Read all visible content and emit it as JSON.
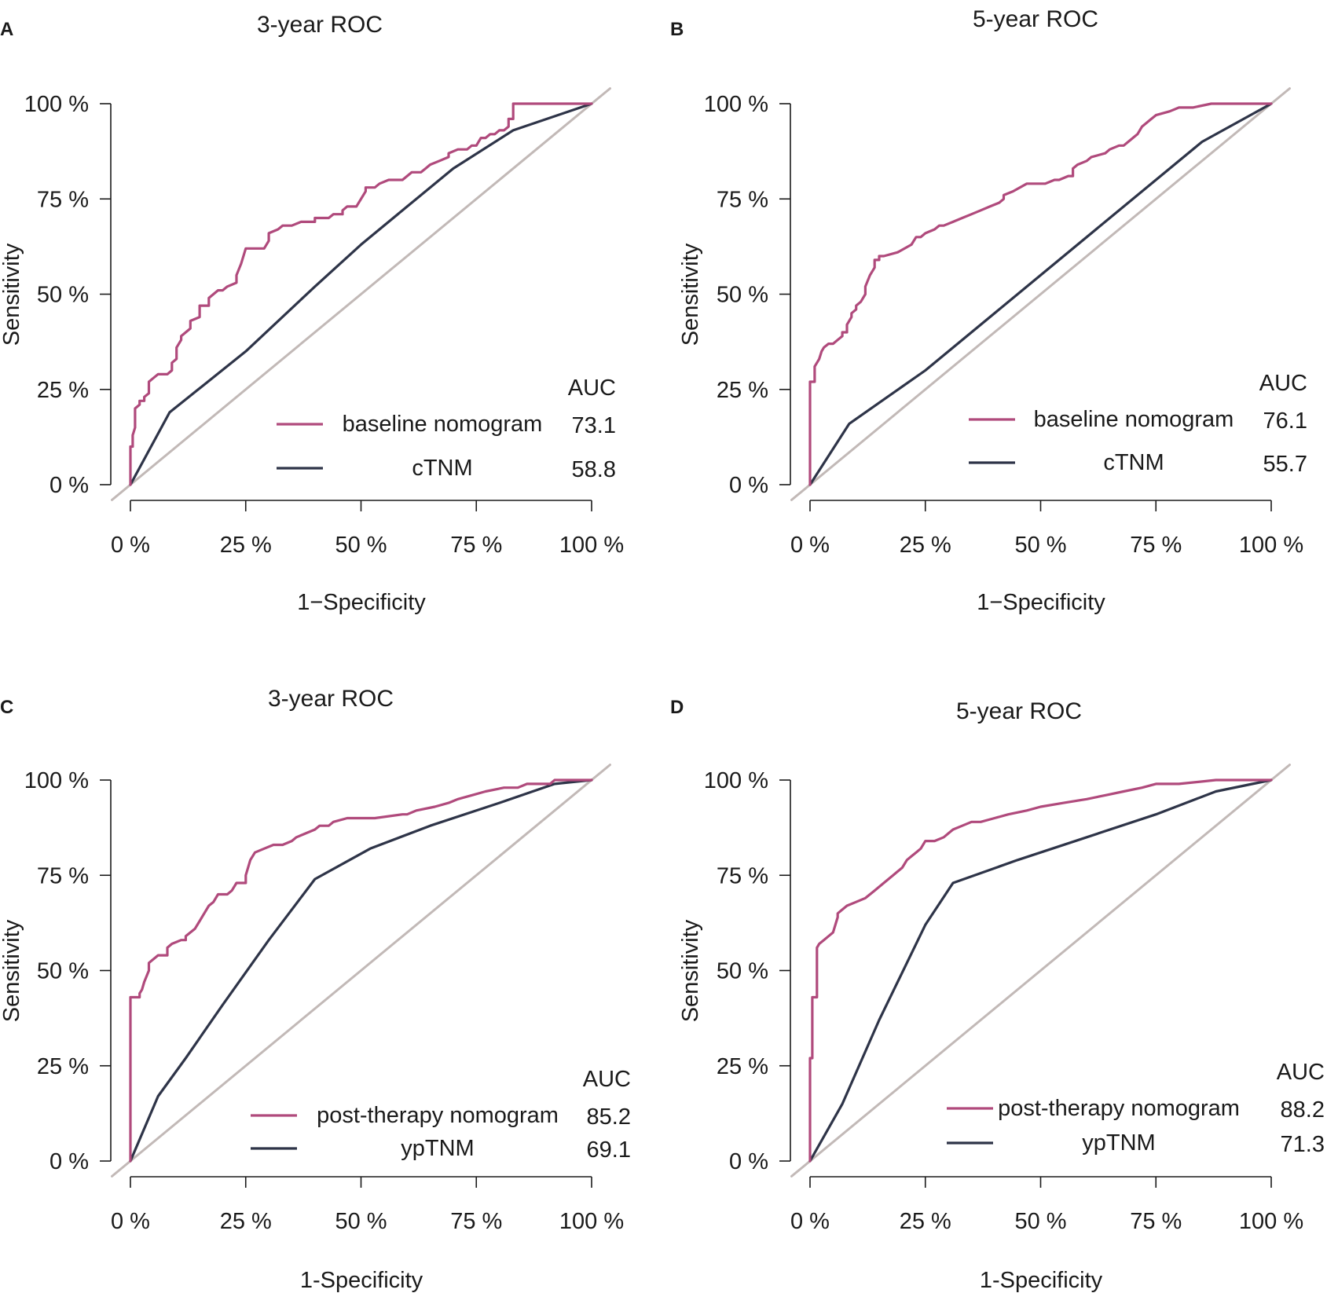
{
  "colors": {
    "nomogram": "#b04a7c",
    "tnm": "#2e3448",
    "diagonal": "#c2b9b7"
  },
  "chart_data": [
    {
      "type": "line",
      "panel_label": "A",
      "title": "3-year ROC",
      "xlabel": "1−Specificity",
      "ylabel": "Sensitivity",
      "xlim": [
        0,
        100
      ],
      "ylim": [
        0,
        100
      ],
      "xticks": [
        "0 %",
        "25 %",
        "50 %",
        "75 %",
        "100 %"
      ],
      "yticks": [
        "0 %",
        "25 %",
        "50 %",
        "75 %",
        "100 %"
      ],
      "legend_header": "AUC",
      "series": [
        {
          "name": "baseline nomogram",
          "auc": "73.1",
          "role": "nomogram",
          "x": [
            0,
            0,
            0.5,
            0.5,
            1,
            1,
            2,
            2,
            3,
            3,
            4,
            4,
            5,
            5,
            6,
            8,
            9,
            9,
            10,
            10,
            11,
            11,
            13,
            13,
            15,
            15,
            17,
            17,
            19,
            20,
            21,
            21,
            23,
            23,
            24,
            25,
            27,
            29,
            30,
            30,
            32,
            33,
            35,
            37,
            40,
            40,
            43,
            44,
            46,
            46,
            47,
            49,
            51,
            51,
            53,
            54,
            56,
            57,
            59,
            60,
            61,
            63,
            64,
            65,
            67,
            69,
            69,
            71,
            73,
            74,
            75,
            76,
            77,
            78,
            79,
            80,
            81,
            82,
            82,
            83,
            83,
            87,
            100
          ],
          "y": [
            0,
            10,
            10,
            13,
            15,
            20,
            21,
            22,
            22,
            23,
            24,
            27,
            28,
            28,
            29,
            29,
            30,
            32,
            33,
            36,
            38,
            39,
            41,
            43,
            44,
            47,
            47,
            49,
            51,
            51,
            52,
            52,
            53,
            55,
            58,
            62,
            62,
            62,
            64,
            66,
            67,
            68,
            68,
            69,
            69,
            70,
            70,
            71,
            71,
            72,
            73,
            73,
            77,
            78,
            78,
            79,
            80,
            80,
            80,
            81,
            82,
            82,
            83,
            84,
            85,
            86,
            87,
            88,
            88,
            89,
            89,
            91,
            91,
            92,
            92,
            93,
            93,
            94,
            96,
            96,
            100,
            100,
            100
          ]
        },
        {
          "name": "cTNM",
          "auc": "58.8",
          "role": "tnm",
          "x": [
            0,
            8.5,
            25,
            40,
            50,
            60,
            70,
            83,
            100
          ],
          "y": [
            0,
            19,
            35,
            52,
            63,
            73,
            83,
            93,
            100
          ]
        }
      ]
    },
    {
      "type": "line",
      "panel_label": "B",
      "title": "5-year ROC",
      "xlabel": "1−Specificity",
      "ylabel": "Sensitivity",
      "xlim": [
        0,
        100
      ],
      "ylim": [
        0,
        100
      ],
      "xticks": [
        "0 %",
        "25 %",
        "50 %",
        "75 %",
        "100 %"
      ],
      "yticks": [
        "0 %",
        "25 %",
        "50 %",
        "75 %",
        "100 %"
      ],
      "legend_header": "AUC",
      "series": [
        {
          "name": "baseline nomogram",
          "auc": "76.1",
          "role": "nomogram",
          "x": [
            0,
            0,
            1,
            1,
            1.5,
            2,
            2.5,
            3,
            4,
            5,
            6,
            7,
            7,
            8,
            8,
            9,
            9,
            10,
            10,
            11,
            12,
            12,
            13,
            14,
            14,
            15,
            15,
            16,
            16,
            19,
            22,
            23,
            24,
            25,
            27,
            28,
            29,
            31,
            33,
            35,
            37,
            39,
            41,
            42,
            42,
            44,
            47,
            51,
            53,
            54,
            56,
            57,
            57,
            58,
            60,
            61,
            64,
            65,
            67,
            68,
            69,
            70,
            71,
            72,
            73,
            74,
            75,
            75,
            78,
            80,
            83,
            87,
            89,
            100
          ],
          "y": [
            0,
            27,
            27,
            31,
            32,
            33,
            35,
            36,
            37,
            37,
            38,
            39,
            40,
            40,
            42,
            44,
            45,
            46,
            47,
            48,
            50,
            52,
            55,
            57,
            59,
            59,
            60,
            60,
            60,
            61,
            63,
            65,
            65,
            66,
            67,
            68,
            68,
            69,
            70,
            71,
            72,
            73,
            74,
            75,
            76,
            77,
            79,
            79,
            80,
            80,
            81,
            81,
            83,
            84,
            85,
            86,
            87,
            88,
            89,
            89,
            90,
            91,
            92,
            94,
            95,
            96,
            97,
            97,
            98,
            99,
            99,
            100,
            100,
            100
          ]
        },
        {
          "name": "cTNM",
          "auc": "55.7",
          "role": "tnm",
          "x": [
            0,
            8.5,
            25,
            45,
            65,
            85,
            100
          ],
          "y": [
            0,
            16,
            30,
            50,
            70,
            90,
            100
          ]
        }
      ]
    },
    {
      "type": "line",
      "panel_label": "C",
      "title": "3-year ROC",
      "xlabel": "1-Specificity",
      "ylabel": "Sensitivity",
      "xlim": [
        0,
        100
      ],
      "ylim": [
        0,
        100
      ],
      "xticks": [
        "0 %",
        "25 %",
        "50 %",
        "75 %",
        "100 %"
      ],
      "yticks": [
        "0 %",
        "25 %",
        "50 %",
        "75 %",
        "100 %"
      ],
      "legend_header": "AUC",
      "series": [
        {
          "name": "post-therapy nomogram",
          "auc": "85.2",
          "role": "nomogram",
          "x": [
            0,
            0,
            0,
            2,
            2,
            2.5,
            3,
            4,
            4,
            5,
            6,
            8,
            8,
            9,
            11,
            12,
            12,
            13,
            14,
            15,
            16,
            17,
            18,
            19,
            21,
            22,
            23,
            25,
            25,
            26,
            27,
            29,
            31,
            33,
            35,
            36,
            38,
            40,
            41,
            43,
            44,
            47,
            50,
            53,
            59,
            60,
            62,
            66,
            69,
            71,
            74,
            77,
            81,
            84,
            86,
            91,
            92,
            100
          ],
          "y": [
            0,
            27,
            43,
            43,
            44,
            45,
            47,
            50,
            52,
            53,
            54,
            54,
            56,
            57,
            58,
            58,
            59,
            60,
            61,
            63,
            65,
            67,
            68,
            70,
            70,
            71,
            73,
            73,
            75,
            79,
            81,
            82,
            83,
            83,
            84,
            85,
            86,
            87,
            88,
            88,
            89,
            90,
            90,
            90,
            91,
            91,
            92,
            93,
            94,
            95,
            96,
            97,
            98,
            98,
            99,
            99,
            100,
            100
          ]
        },
        {
          "name": "ypTNM",
          "auc": "69.1",
          "role": "tnm",
          "x": [
            0,
            6,
            12,
            20,
            30,
            40,
            52,
            65,
            80,
            92,
            100
          ],
          "y": [
            0,
            17,
            27,
            41,
            58,
            74,
            82,
            88,
            94,
            99,
            100
          ]
        }
      ]
    },
    {
      "type": "line",
      "panel_label": "D",
      "title": "5-year ROC",
      "xlabel": "1-Specificity",
      "ylabel": "Sensitivity",
      "xlim": [
        0,
        100
      ],
      "ylim": [
        0,
        100
      ],
      "xticks": [
        "0 %",
        "25 %",
        "50 %",
        "75 %",
        "100 %"
      ],
      "yticks": [
        "0 %",
        "25 %",
        "50 %",
        "75 %",
        "100 %"
      ],
      "legend_header": "AUC",
      "series": [
        {
          "name": "post-therapy nomogram",
          "auc": "88.2",
          "role": "nomogram",
          "x": [
            0,
            0,
            0.5,
            0.5,
            1.5,
            1.5,
            2,
            3,
            4,
            5,
            6,
            6,
            7,
            8,
            10,
            12,
            14,
            16,
            17,
            18,
            19,
            20,
            21,
            22,
            23,
            24,
            25,
            27,
            29,
            30,
            31,
            33,
            35,
            37,
            40,
            43,
            47,
            50,
            55,
            60,
            64,
            68,
            72,
            75,
            80,
            88,
            100
          ],
          "y": [
            0,
            27,
            27,
            43,
            43,
            56,
            57,
            58,
            59,
            60,
            64,
            65,
            66,
            67,
            68,
            69,
            71,
            73,
            74,
            75,
            76,
            77,
            79,
            80,
            81,
            82,
            84,
            84,
            85,
            86,
            87,
            88,
            89,
            89,
            90,
            91,
            92,
            93,
            94,
            95,
            96,
            97,
            98,
            99,
            99,
            100,
            100
          ]
        },
        {
          "name": "ypTNM",
          "auc": "71.3",
          "role": "tnm",
          "x": [
            0,
            7,
            15,
            25,
            31,
            45,
            60,
            75,
            88,
            100
          ],
          "y": [
            0,
            15,
            37,
            62,
            73,
            79,
            85,
            91,
            97,
            100
          ]
        }
      ]
    }
  ]
}
